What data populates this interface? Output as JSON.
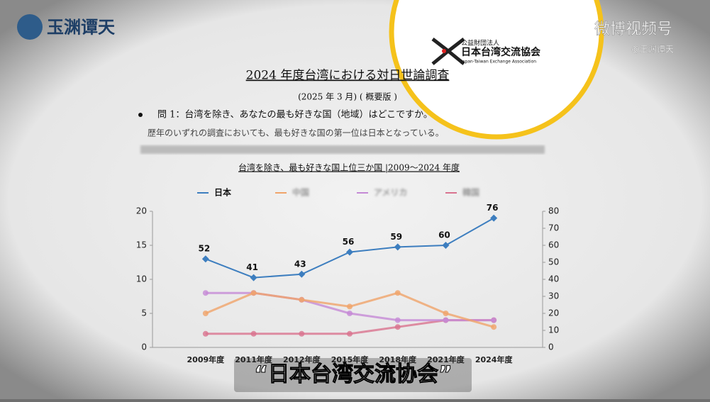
{
  "brand": {
    "logo": "玉渊谭天",
    "platform": "微博视频号",
    "handle": "@玉渊谭天"
  },
  "document": {
    "title": "2024 年度台湾における対日世論調査",
    "date": "(2025 年 3 月) ( 概要版 )",
    "question": "問 1：台湾を除き、あなたの最も好きな国（地域）はどこですか。",
    "answer": "歴年のいずれの調査においても、最も好きな国の第一位は日本となっている。"
  },
  "organization": {
    "kind": "公益財団法人",
    "name": "日本台湾交流協会",
    "english": "Japan-Taiwan Exchange Association"
  },
  "caption": "“日本台湾交流协会”",
  "chart_data": {
    "type": "line",
    "title": "台湾を除き、最も好きな国上位三か国 |2009〜2024 年度",
    "categories": [
      "2009年度",
      "2011年度",
      "2012年度",
      "2015年度",
      "2018年度",
      "2021年度",
      "2024年度"
    ],
    "series": [
      {
        "name": "日本",
        "color": "#3d7ebf",
        "axis": "y2",
        "values": [
          52,
          41,
          43,
          56,
          59,
          60,
          76
        ]
      },
      {
        "name": "中国",
        "color": "#f0a46a",
        "values": [
          5,
          8,
          7,
          6,
          8,
          5,
          3
        ]
      },
      {
        "name": "アメリカ",
        "color": "#c58ad6",
        "values": [
          8,
          8,
          7,
          5,
          4,
          4,
          4
        ]
      },
      {
        "name": "韓国",
        "color": "#d9738f",
        "values": [
          2,
          2,
          2,
          2,
          3,
          4,
          4
        ]
      }
    ],
    "ylim": [
      0,
      20
    ],
    "yticks": [
      0,
      5,
      10,
      15,
      20
    ],
    "y2lim": [
      0,
      80
    ],
    "y2ticks": [
      0,
      10,
      20,
      30,
      40,
      50,
      60,
      70,
      80
    ]
  }
}
